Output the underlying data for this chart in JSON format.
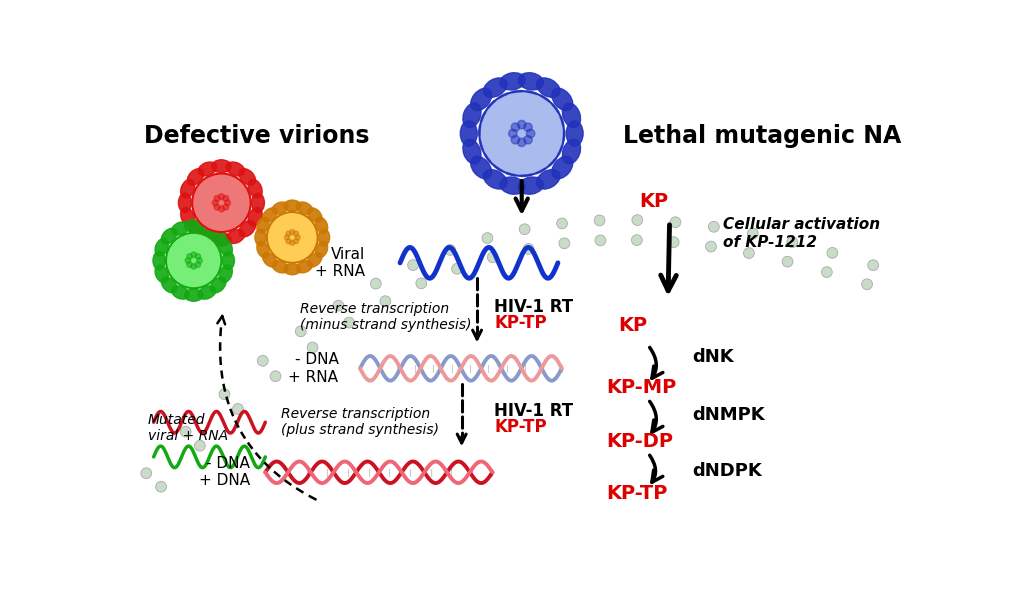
{
  "background_color": "#ffffff",
  "membrane_color": "#c8dcc8",
  "membrane_outline": "#aaaaaa",
  "text_red": "#dd0000",
  "text_black": "#000000",
  "wave_blue": "#1133cc",
  "wave_red": "#cc1122",
  "wave_pink": "#ee6677",
  "wave_blue_mid": "#7788cc",
  "wave_pink_mid": "#cc8899",
  "wave_green": "#11aa11",
  "virus_blue_main": "#2233bb",
  "virus_blue_light": "#8899dd",
  "virus_blue_glow": "#aabbee",
  "virus_red_main": "#dd1111",
  "virus_red_light": "#ee7777",
  "virus_orange_main": "#cc7700",
  "virus_orange_light": "#ffcc55",
  "virus_green_main": "#11aa11",
  "virus_green_light": "#77ee77",
  "labels": {
    "defective_virions": "Defective virions",
    "lethal_mutagenic": "Lethal mutagenic NA",
    "viral_rna": "Viral\n+ RNA",
    "minus_dna_rna": "- DNA\n+ RNA",
    "minus_dna_dna": "- DNA\n+ DNA",
    "mutated_viral": "Mutated\nviral + RNA",
    "reverse_trans_minus": "Reverse transcription\n(minus strand synthesis)",
    "reverse_trans_plus": "Reverse transcription\n(plus strand synthesis)",
    "kp_top": "KP",
    "cellular_activation": "Cellular activation\nof KP-1212",
    "kp_mid": "KP",
    "kp_mp": "KP-MP",
    "kp_dp": "KP-DP",
    "kp_tp_bottom": "KP-TP",
    "dnk": "dNK",
    "dnmpk": "dNMPK",
    "dndpk": "dNDPK",
    "hiv_rt": "HIV-1 RT",
    "kp_tp_label": "KP-TP"
  }
}
